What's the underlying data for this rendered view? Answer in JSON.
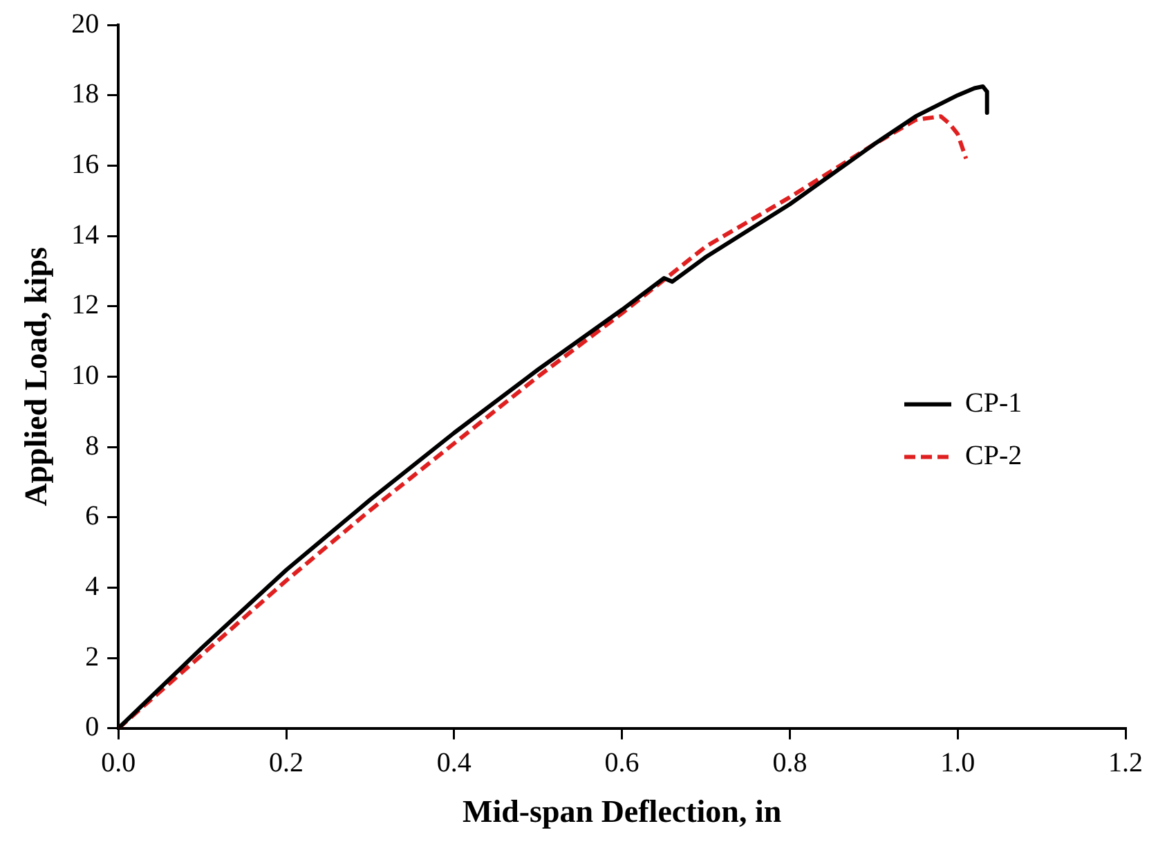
{
  "chart_data": {
    "type": "line",
    "xlabel": "Mid-span Deflection, in",
    "ylabel": "Applied Load, kips",
    "xlim": [
      0,
      1.2
    ],
    "xticks": [
      {
        "value": 0,
        "label": "0.0"
      },
      0.2,
      0.4,
      0.6,
      0.8,
      {
        "value": 1,
        "label": "1.0"
      },
      {
        "value": 1.2,
        "label": "1.2"
      }
    ],
    "ylim": [
      0,
      20
    ],
    "yticks": [
      0,
      2,
      4,
      6,
      8,
      10,
      12,
      14,
      16,
      18,
      20
    ],
    "grid": false,
    "legend": "right",
    "marker": "none",
    "series": [
      {
        "name": "CP-1",
        "color": "#000000",
        "line_style": "solid",
        "x": [
          0,
          0.1,
          0.2,
          0.3,
          0.4,
          0.5,
          0.6,
          0.65,
          0.66,
          0.7,
          0.8,
          0.9,
          0.95,
          1,
          1.02,
          1.03,
          1.035,
          1.035
        ],
        "values": [
          0,
          2.3,
          4.5,
          6.5,
          8.4,
          10.2,
          11.9,
          12.8,
          12.7,
          13.4,
          14.9,
          16.6,
          17.4,
          18.0,
          18.2,
          18.25,
          18.1,
          17.5
        ]
      },
      {
        "name": "CP-2",
        "color": "#e02020",
        "line_style": "dashed",
        "x": [
          0,
          0.1,
          0.2,
          0.3,
          0.4,
          0.5,
          0.6,
          0.7,
          0.8,
          0.9,
          0.95,
          0.98,
          0.99,
          1,
          1.01
        ],
        "values": [
          0,
          2.1,
          4.2,
          6.2,
          8.1,
          10.0,
          11.8,
          13.7,
          15.1,
          16.6,
          17.3,
          17.4,
          17.2,
          16.9,
          16.2
        ]
      }
    ]
  }
}
